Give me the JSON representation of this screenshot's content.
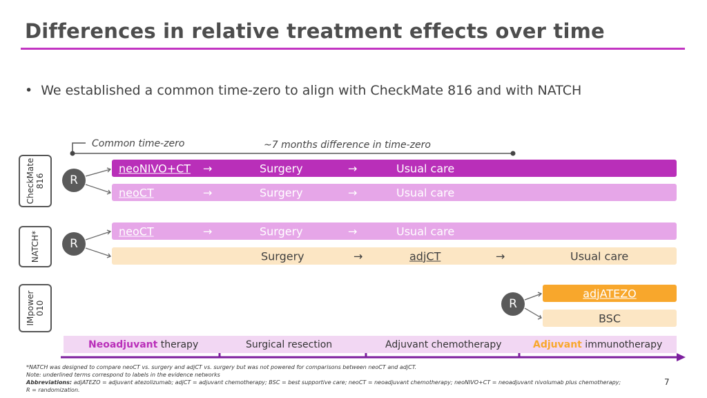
{
  "title": "Differences in relative treatment effects over time",
  "bullet": "We established a common time-zero to align with CheckMate 816 and with NATCH",
  "timeline": {
    "common_label": "Common time-zero",
    "diff_label": "~7 months difference in time-zero"
  },
  "arrow": "→",
  "trials": {
    "checkmate": {
      "label": "CheckMate\n816",
      "r": "R",
      "arm1": {
        "a": "neoNIVO+CT",
        "b": "Surgery",
        "c": "Usual care"
      },
      "arm2": {
        "a": "neoCT",
        "b": "Surgery",
        "c": "Usual care"
      }
    },
    "natch": {
      "label": "NATCH*",
      "r": "R",
      "arm1": {
        "a": "neoCT",
        "b": "Surgery",
        "c": "Usual care"
      },
      "arm2": {
        "a": "Surgery",
        "b": "adjCT",
        "c": "Usual care"
      }
    },
    "impower": {
      "label": "IMpower\n010",
      "r": "R",
      "arm1": {
        "a": "adjATEZO"
      },
      "arm2": {
        "a": "BSC"
      }
    }
  },
  "phases": {
    "neo_bold": "Neoadjuvant",
    "neo_rest": " therapy",
    "surgical": "Surgical resection",
    "adjchemo": "Adjuvant chemotherapy",
    "adjimm_bold": "Adjuvant",
    "adjimm_rest": " immunotherapy"
  },
  "footnotes": {
    "f1": "*NATCH was designed to compare neoCT vs. surgery and adjCT vs. surgery but was not powered for comparisons between neoCT and adjCT.",
    "f2": "Note: underlined terms correspond to labels in the evidence networks",
    "abbr_label": "Abbreviations:",
    "abbr_text": " adjATEZO = adjuvant atezolizumab; adjCT = adjuvant chemotherapy; BSC = best supportive care; neoCT = neoadjuvant chemotherapy; neoNIVO+CT = neoadjuvant nivolumab plus chemotherapy;",
    "f4": "R = randomization."
  },
  "page_number": "7",
  "colors": {
    "magenta": "#b92fb9",
    "light_magenta": "#e6a6e8",
    "peach": "#fce6c4",
    "orange": "#f8a72c",
    "phase_band": "#f2d7f3",
    "timeline_arrow": "#7d1f9e"
  }
}
